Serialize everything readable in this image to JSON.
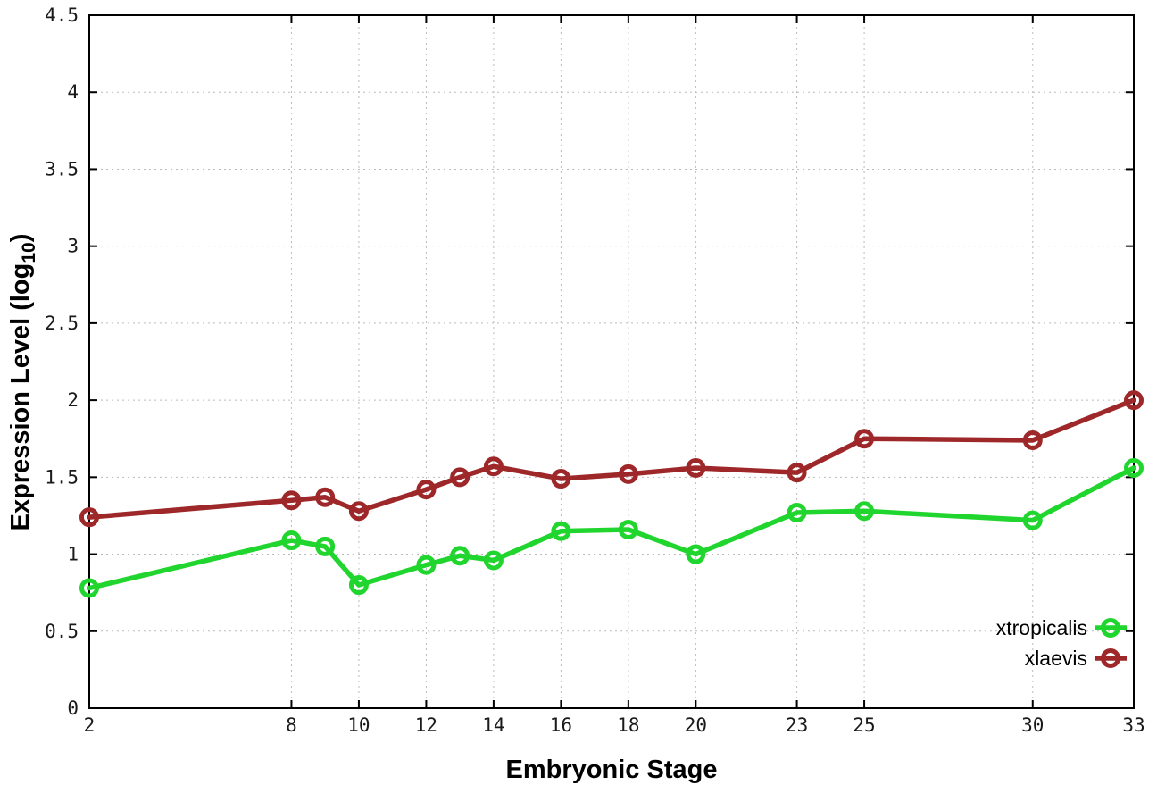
{
  "chart_data": {
    "type": "line",
    "title": "",
    "xlabel": "Embryonic Stage",
    "ylabel": {
      "pre": "Expression Level (log",
      "sub": "10",
      "post": ")"
    },
    "xlim": [
      2,
      33
    ],
    "ylim": [
      0,
      4.5
    ],
    "grid": true,
    "legend_position": "inside-right-bottom",
    "x": [
      2,
      8,
      9,
      10,
      12,
      13,
      14,
      16,
      18,
      20,
      23,
      25,
      30,
      33
    ],
    "x_ticks": [
      2,
      8,
      10,
      12,
      14,
      16,
      18,
      20,
      23,
      25,
      30,
      33
    ],
    "x_tick_labels": [
      "2",
      "8",
      "10",
      "12",
      "14",
      "16",
      "18",
      "20",
      "23",
      "25",
      "30",
      "33"
    ],
    "y_ticks": [
      0,
      0.5,
      1,
      1.5,
      2,
      2.5,
      3,
      3.5,
      4,
      4.5
    ],
    "y_tick_labels": [
      "0",
      "0.5",
      "1",
      "1.5",
      "2",
      "2.5",
      "3",
      "3.5",
      "4",
      "4.5"
    ],
    "series": [
      {
        "name": "xtropicalis",
        "color": "#20d52d",
        "values": [
          0.78,
          1.09,
          1.05,
          0.8,
          0.93,
          0.99,
          0.96,
          1.15,
          1.16,
          1.0,
          1.27,
          1.28,
          1.22,
          1.56
        ]
      },
      {
        "name": "xlaevis",
        "color": "#9e2829",
        "values": [
          1.24,
          1.35,
          1.37,
          1.28,
          1.42,
          1.5,
          1.57,
          1.49,
          1.52,
          1.56,
          1.53,
          1.75,
          1.74,
          2.0
        ]
      }
    ]
  },
  "colors": {
    "background": "#ffffff",
    "border": "#000000",
    "grid": "#bbbbbb",
    "tick_label": "#1a1a1a",
    "legend_text": "#000000"
  }
}
